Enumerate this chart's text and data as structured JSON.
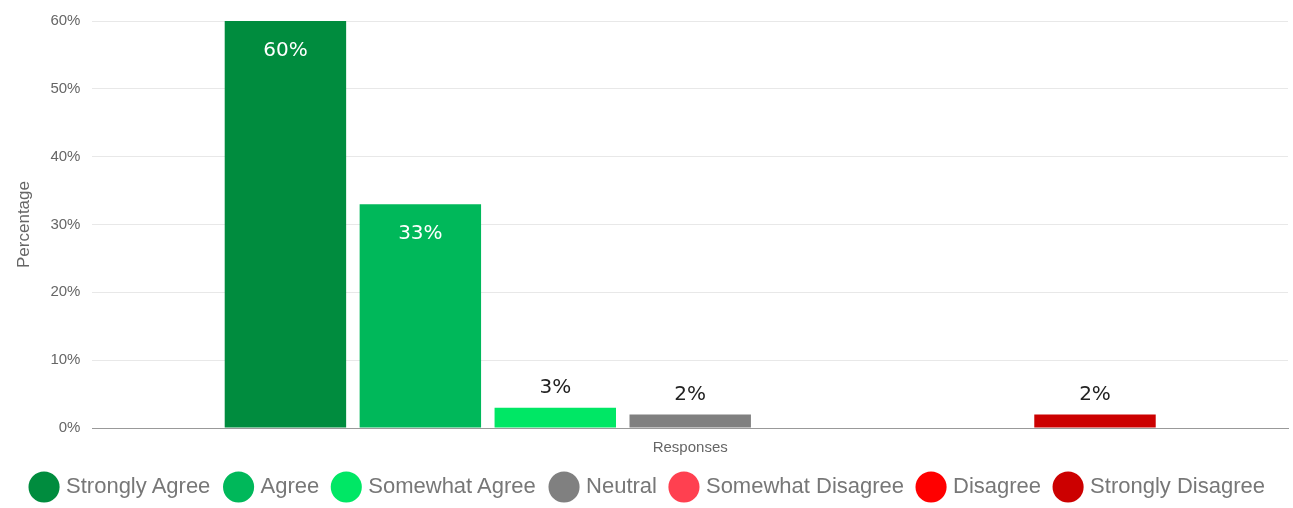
{
  "chart_data": {
    "type": "bar",
    "categories": [
      "Responses"
    ],
    "ylabel": "Percentage",
    "ylim": [
      0,
      60
    ],
    "yticks": [
      {
        "value": 0,
        "label": "0%"
      },
      {
        "value": 10,
        "label": "10%"
      },
      {
        "value": 20,
        "label": "20%"
      },
      {
        "value": 30,
        "label": "30%"
      },
      {
        "value": 40,
        "label": "40%"
      },
      {
        "value": 50,
        "label": "50%"
      },
      {
        "value": 60,
        "label": "60%"
      }
    ],
    "grid": "y",
    "legend": "bottom",
    "series": [
      {
        "name": "Strongly Agree",
        "color": "#008c3e",
        "values": [
          60
        ],
        "value_labels": [
          "60%"
        ]
      },
      {
        "name": "Agree",
        "color": "#00b85a",
        "values": [
          33
        ],
        "value_labels": [
          "33%"
        ]
      },
      {
        "name": "Somewhat Agree",
        "color": "#00e765",
        "values": [
          3
        ],
        "value_labels": [
          "3%"
        ]
      },
      {
        "name": "Neutral",
        "color": "#808080",
        "values": [
          2
        ],
        "value_labels": [
          "2%"
        ]
      },
      {
        "name": "Somewhat Disagree",
        "color": "#ff4050",
        "values": [
          0
        ],
        "value_labels": [
          null
        ]
      },
      {
        "name": "Disagree",
        "color": "#ff0000",
        "values": [
          0
        ],
        "value_labels": [
          null
        ]
      },
      {
        "name": "Strongly Disagree",
        "color": "#cc0000",
        "values": [
          2
        ],
        "value_labels": [
          "2%"
        ]
      }
    ]
  }
}
